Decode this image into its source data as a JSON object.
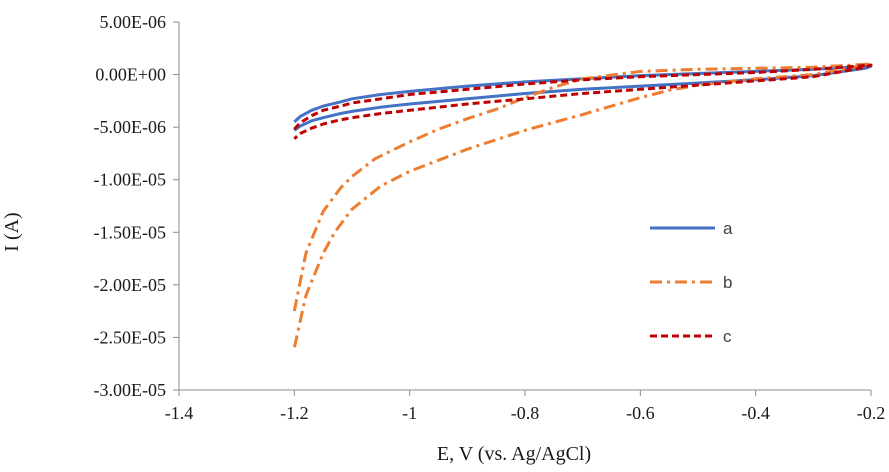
{
  "chart_data": {
    "type": "line",
    "title": "",
    "xlabel": "E, V (vs. Ag/AgCl)",
    "ylabel": "I (A)",
    "xlim": [
      -1.4,
      -0.2
    ],
    "ylim": [
      -3e-05,
      5e-06
    ],
    "x_ticks": [
      -1.4,
      -1.2,
      -1,
      -0.8,
      -0.6,
      -0.4,
      -0.2
    ],
    "x_tick_labels": [
      "-1.4",
      "-1.2",
      "-1",
      "-0.8",
      "-0.6",
      "-0.4",
      "-0.2"
    ],
    "y_ticks": [
      5e-06,
      0,
      -5e-06,
      -1e-05,
      -1.5e-05,
      -2e-05,
      -2.5e-05,
      -3e-05
    ],
    "y_tick_labels": [
      "5.00E-06",
      "0.00E+00",
      "-5.00E-06",
      "-1.00E-05",
      "-1.50E-05",
      "-2.00E-05",
      "-2.50E-05",
      "-3.00E-05"
    ],
    "grid": false,
    "legend_position": "right",
    "series": [
      {
        "name": "a",
        "color": "#4472C4",
        "dash": "solid",
        "x": [
          -1.2,
          -1.19,
          -1.17,
          -1.15,
          -1.12,
          -1.1,
          -1.05,
          -1.0,
          -0.9,
          -0.8,
          -0.7,
          -0.6,
          -0.5,
          -0.4,
          -0.3,
          -0.2,
          -0.21,
          -0.3,
          -0.4,
          -0.5,
          -0.6,
          -0.7,
          -0.8,
          -0.9,
          -1.0,
          -1.05,
          -1.1,
          -1.12,
          -1.15,
          -1.17,
          -1.19,
          -1.2
        ],
        "y": [
          -4.5e-06,
          -4e-06,
          -3.4e-06,
          -3e-06,
          -2.6e-06,
          -2.3e-06,
          -1.9e-06,
          -1.6e-06,
          -1.1e-06,
          -7e-07,
          -4e-07,
          -1e-07,
          1e-07,
          3e-07,
          5e-07,
          8e-07,
          6e-07,
          -1e-07,
          -5e-07,
          -8e-07,
          -1.1e-06,
          -1.4e-06,
          -1.8e-06,
          -2.3e-06,
          -2.8e-06,
          -3.1e-06,
          -3.5e-06,
          -3.7e-06,
          -4.1e-06,
          -4.4e-06,
          -4.9e-06,
          -5.3e-06
        ]
      },
      {
        "name": "b",
        "color": "#ED7D31",
        "dash": "dash-dot",
        "x": [
          -1.2,
          -1.18,
          -1.15,
          -1.12,
          -1.1,
          -1.06,
          -1.0,
          -0.95,
          -0.9,
          -0.85,
          -0.8,
          -0.75,
          -0.7,
          -0.6,
          -0.5,
          -0.4,
          -0.3,
          -0.2,
          -0.22,
          -0.3,
          -0.4,
          -0.5,
          -0.55,
          -0.6,
          -0.7,
          -0.8,
          -0.9,
          -1.0,
          -1.05,
          -1.1,
          -1.13,
          -1.15,
          -1.18,
          -1.2
        ],
        "y": [
          -2.25e-05,
          -1.7e-05,
          -1.3e-05,
          -1.08e-05,
          -9.7e-06,
          -8e-06,
          -6.4e-06,
          -5.2e-06,
          -4.2e-06,
          -3.3e-06,
          -2.2e-06,
          -1.2e-06,
          -4e-07,
          3e-07,
          5e-07,
          6e-07,
          7e-07,
          1e-06,
          8e-07,
          0.0,
          -4e-07,
          -1e-06,
          -1.5e-06,
          -2.2e-06,
          -3.8e-06,
          -5.3e-06,
          -7.1e-06,
          -9.2e-06,
          -1.06e-05,
          -1.28e-05,
          -1.5e-05,
          -1.7e-05,
          -2.1e-05,
          -2.6e-05
        ]
      },
      {
        "name": "c",
        "color": "#C00000",
        "dash": "dashed",
        "x": [
          -1.2,
          -1.19,
          -1.17,
          -1.15,
          -1.12,
          -1.1,
          -1.05,
          -1.0,
          -0.9,
          -0.8,
          -0.7,
          -0.6,
          -0.5,
          -0.4,
          -0.3,
          -0.2,
          -0.21,
          -0.3,
          -0.4,
          -0.5,
          -0.6,
          -0.7,
          -0.8,
          -0.9,
          -1.0,
          -1.05,
          -1.1,
          -1.12,
          -1.15,
          -1.17,
          -1.19,
          -1.2
        ],
        "y": [
          -5.2e-06,
          -4.6e-06,
          -3.9e-06,
          -3.4e-06,
          -3e-06,
          -2.7e-06,
          -2.3e-06,
          -1.9e-06,
          -1.4e-06,
          -9e-07,
          -5e-07,
          -2e-07,
          0.0,
          2e-07,
          5e-07,
          9e-07,
          7e-07,
          -2e-07,
          -6e-07,
          -1e-06,
          -1.4e-06,
          -1.8e-06,
          -2.3e-06,
          -2.8e-06,
          -3.4e-06,
          -3.7e-06,
          -4.1e-06,
          -4.3e-06,
          -4.7e-06,
          -5.1e-06,
          -5.6e-06,
          -6.1e-06
        ]
      }
    ]
  }
}
